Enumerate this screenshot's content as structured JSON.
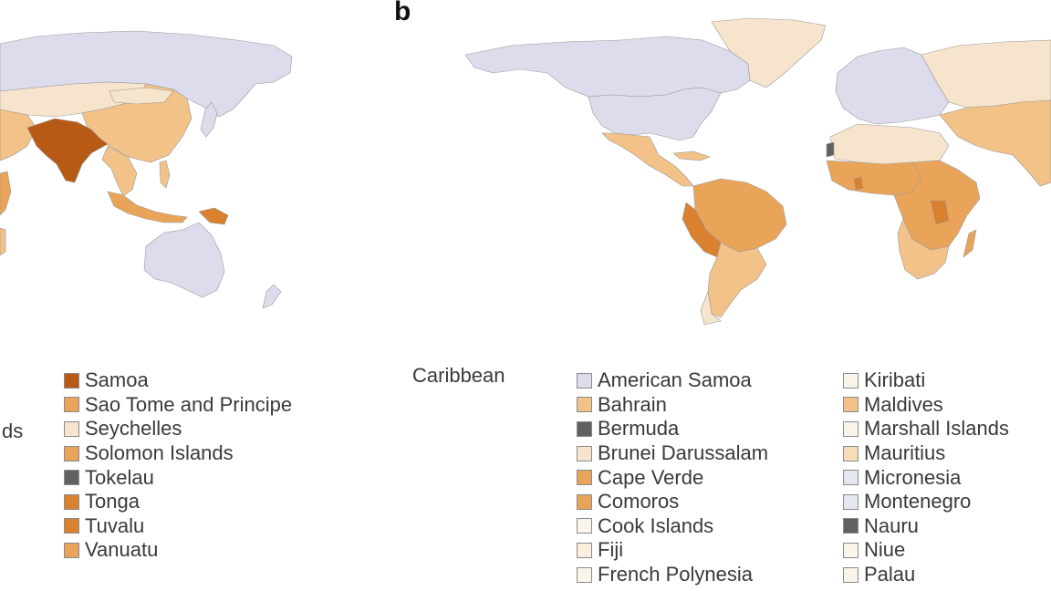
{
  "panel_label": "b",
  "left_fragment_text": "ds",
  "inset": {
    "title": "Caribbean"
  },
  "colors": {
    "lavender": "#dcdcec",
    "pale": "#f7e4cc",
    "light_orange": "#f2c288",
    "orange": "#eaa459",
    "dark_orange": "#d9812f",
    "brown": "#b75a16",
    "grey": "#606060",
    "ocean": "#ffffff",
    "border": "#9a9a9a"
  },
  "legend_a": [
    {
      "label": "Samoa",
      "color": "#b75a16"
    },
    {
      "label": "Sao Tome and Principe",
      "color": "#eaa459"
    },
    {
      "label": "Seychelles",
      "color": "#f7e4cc"
    },
    {
      "label": "Solomon Islands",
      "color": "#eaa459"
    },
    {
      "label": "Tokelau",
      "color": "#606060"
    },
    {
      "label": "Tonga",
      "color": "#d9812f"
    },
    {
      "label": "Tuvalu",
      "color": "#d9812f"
    },
    {
      "label": "Vanuatu",
      "color": "#eaa459"
    }
  ],
  "legend_b1": [
    {
      "label": "American Samoa",
      "color": "#dcdcec"
    },
    {
      "label": "Bahrain",
      "color": "#f2c288"
    },
    {
      "label": "Bermuda",
      "color": "#606060"
    },
    {
      "label": "Brunei Darussalam",
      "color": "#f7e4cc"
    },
    {
      "label": "Cape Verde",
      "color": "#eaa459"
    },
    {
      "label": "Comoros",
      "color": "#eaa459"
    },
    {
      "label": "Cook Islands",
      "color": "#fbf4ea"
    },
    {
      "label": "Fiji",
      "color": "#fbeede"
    },
    {
      "label": "French Polynesia",
      "color": "#fbf4ea"
    }
  ],
  "legend_b2": [
    {
      "label": "Kiribati",
      "color": "#faf3ea"
    },
    {
      "label": "Maldives",
      "color": "#f2c288"
    },
    {
      "label": "Marshall Islands",
      "color": "#faf3ea"
    },
    {
      "label": "Mauritius",
      "color": "#f7dcb8"
    },
    {
      "label": "Micronesia",
      "color": "#e4e6f0"
    },
    {
      "label": "Montenegro",
      "color": "#e4e6f0"
    },
    {
      "label": "Nauru",
      "color": "#606060"
    },
    {
      "label": "Niue",
      "color": "#fbf4ea"
    },
    {
      "label": "Palau",
      "color": "#faf3ea"
    }
  ]
}
